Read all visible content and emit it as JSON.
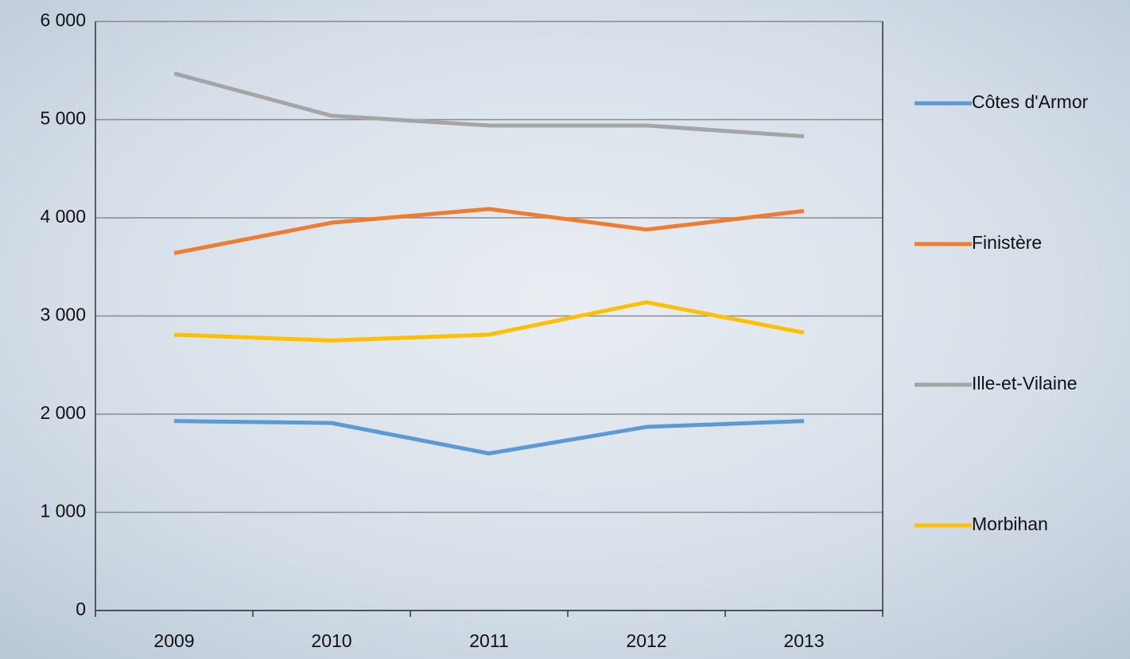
{
  "chart_data": {
    "type": "line",
    "categories": [
      "2009",
      "2010",
      "2011",
      "2012",
      "2013"
    ],
    "series": [
      {
        "name": "Côtes d'Armor",
        "color": "#5b9bd5",
        "values": [
          1930,
          1910,
          1600,
          1870,
          1930
        ]
      },
      {
        "name": "Finistère",
        "color": "#ed7d31",
        "values": [
          3640,
          3950,
          4090,
          3880,
          4070
        ]
      },
      {
        "name": "Ille-et-Vilaine",
        "color": "#a5a5a5",
        "values": [
          5470,
          5040,
          4940,
          4940,
          4830
        ]
      },
      {
        "name": "Morbihan",
        "color": "#ffc000",
        "values": [
          2810,
          2750,
          2810,
          3140,
          2830
        ]
      }
    ],
    "ylim": [
      0,
      6000
    ],
    "yticks": [
      0,
      {
        "value": 1000,
        "label": "1 000"
      },
      {
        "value": 2000,
        "label": "2 000"
      },
      {
        "value": 3000,
        "label": "3 000"
      },
      {
        "value": 4000,
        "label": "4 000"
      },
      {
        "value": 5000,
        "label": "5 000"
      },
      {
        "value": 6000,
        "label": "6 000"
      }
    ],
    "grid": true,
    "legend": "right"
  }
}
